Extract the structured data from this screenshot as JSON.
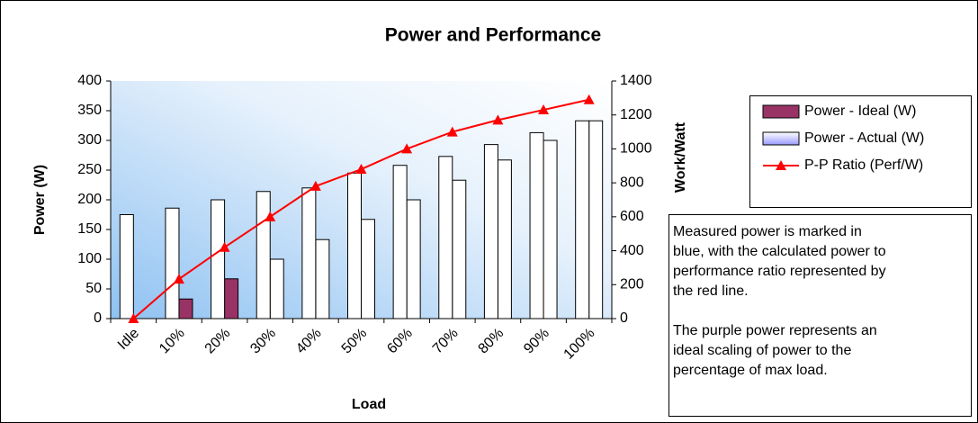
{
  "chart_data": {
    "type": "bar",
    "title": "Power and Performance",
    "xlabel": "Load",
    "ylabel": "Power (W)",
    "y2label": "Work/Watt",
    "categories": [
      "Idle",
      "10%",
      "20%",
      "30%",
      "40%",
      "50%",
      "60%",
      "70%",
      "80%",
      "90%",
      "100%"
    ],
    "series": [
      {
        "name": "Power - Ideal (W)",
        "color": "#993366",
        "bar_colors": [
          "#ffffff",
          "#993366",
          "#993366",
          "#ffffff",
          "#ffffff",
          "#ffffff",
          "#ffffff",
          "#ffffff",
          "#ffffff",
          "#ffffff",
          "#ffffff"
        ],
        "values": [
          0,
          33,
          67,
          100,
          133,
          167,
          200,
          233,
          267,
          300,
          333
        ]
      },
      {
        "name": "Power - Actual (W)",
        "color": "#9999ff",
        "bar_colors": [
          "#ffffff",
          "#ffffff",
          "#ffffff",
          "#ffffff",
          "#ffffff",
          "#ffffff",
          "#ffffff",
          "#ffffff",
          "#ffffff",
          "#ffffff",
          "#ffffff"
        ],
        "values": [
          175,
          186,
          200,
          214,
          220,
          245,
          258,
          273,
          293,
          313,
          333
        ]
      },
      {
        "name": "P-P Ratio (Perf/W)",
        "color": "#ff0000",
        "type": "line",
        "axis": "y2",
        "values": [
          0,
          233,
          420,
          600,
          780,
          880,
          1000,
          1100,
          1170,
          1230,
          1290
        ]
      }
    ],
    "ylim": [
      0,
      400
    ],
    "yticks": [
      0,
      50,
      100,
      150,
      200,
      250,
      300,
      350,
      400
    ],
    "y2lim": [
      0,
      1400
    ],
    "y2ticks": [
      0,
      200,
      400,
      600,
      800,
      1000,
      1200,
      1400
    ],
    "legend": "right",
    "annotations": [
      [
        "Measured power is marked in",
        "blue, with the calculated power to",
        "performance ratio represented by",
        "the red line."
      ],
      [
        "The purple power represents an",
        "ideal scaling of power to the",
        "percentage of max load."
      ]
    ]
  }
}
